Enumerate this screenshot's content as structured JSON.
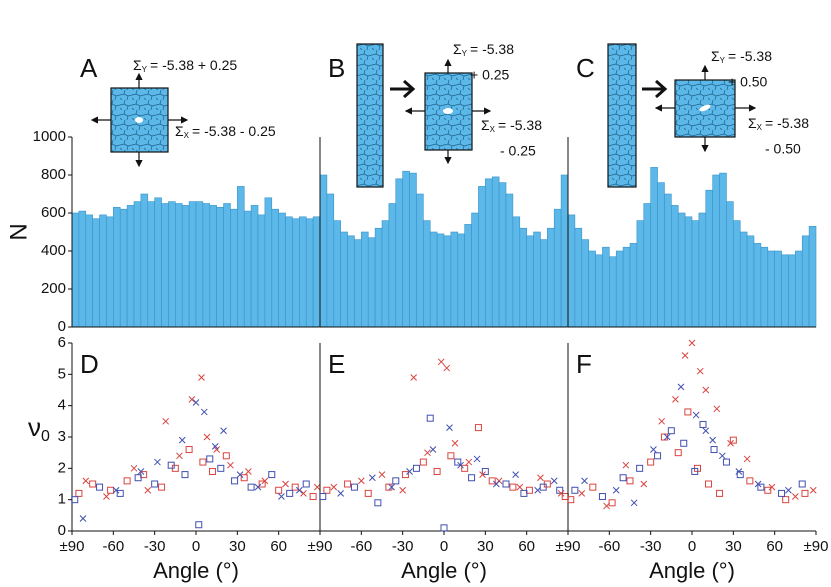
{
  "chart_data": [
    {
      "type": "histogram",
      "panel": "A",
      "color": "#5bb8e8",
      "xlim": [
        -90,
        90
      ],
      "ylim": [
        0,
        1000
      ],
      "yticks": [
        0,
        200,
        400,
        600,
        800,
        1000
      ],
      "ylabel": "N",
      "bins": [
        -90,
        -85,
        -80,
        -75,
        -70,
        -65,
        -60,
        -55,
        -50,
        -45,
        -40,
        -35,
        -30,
        -25,
        -20,
        -15,
        -10,
        -5,
        0,
        5,
        10,
        15,
        20,
        25,
        30,
        35,
        40,
        45,
        50,
        55,
        60,
        65,
        70,
        75,
        80,
        85,
        90
      ],
      "values": [
        600,
        610,
        590,
        570,
        590,
        580,
        630,
        620,
        640,
        660,
        700,
        660,
        680,
        650,
        660,
        650,
        640,
        660,
        660,
        650,
        640,
        630,
        650,
        620,
        740,
        610,
        640,
        590,
        680,
        620,
        600,
        580,
        570,
        580,
        570,
        580
      ],
      "annotations": [
        {
          "symbol": "Σ",
          "sub": "Y",
          "lines": [
            "= -5.38 + 0.25"
          ]
        },
        {
          "symbol": "Σ",
          "sub": "X",
          "lines": [
            "= -5.38 - 0.25"
          ]
        }
      ]
    },
    {
      "type": "histogram",
      "panel": "B",
      "color": "#5bb8e8",
      "xlim": [
        -90,
        90
      ],
      "ylim": [
        0,
        1000
      ],
      "bins": [
        -90,
        -85,
        -80,
        -75,
        -70,
        -65,
        -60,
        -55,
        -50,
        -45,
        -40,
        -35,
        -30,
        -25,
        -20,
        -15,
        -10,
        -5,
        0,
        5,
        10,
        15,
        20,
        25,
        30,
        35,
        40,
        45,
        50,
        55,
        60,
        65,
        70,
        75,
        80,
        85,
        90
      ],
      "values": [
        800,
        700,
        560,
        500,
        480,
        460,
        500,
        470,
        520,
        560,
        650,
        780,
        820,
        810,
        700,
        560,
        500,
        490,
        480,
        500,
        490,
        540,
        600,
        740,
        780,
        790,
        760,
        700,
        580,
        520,
        480,
        500,
        460,
        520,
        620,
        800
      ],
      "annotations": [
        {
          "symbol": "Σ",
          "sub": "Y",
          "lines": [
            "= -5.38",
            "+ 0.25"
          ]
        },
        {
          "symbol": "Σ",
          "sub": "X",
          "lines": [
            "= -5.38",
            "- 0.25"
          ]
        }
      ]
    },
    {
      "type": "histogram",
      "panel": "C",
      "color": "#5bb8e8",
      "xlim": [
        -90,
        90
      ],
      "ylim": [
        0,
        1000
      ],
      "bins": [
        -90,
        -85,
        -80,
        -75,
        -70,
        -65,
        -60,
        -55,
        -50,
        -45,
        -40,
        -35,
        -30,
        -25,
        -20,
        -15,
        -10,
        -5,
        0,
        5,
        10,
        15,
        20,
        25,
        30,
        35,
        40,
        45,
        50,
        55,
        60,
        65,
        70,
        75,
        80,
        85,
        90
      ],
      "values": [
        590,
        520,
        460,
        400,
        380,
        420,
        370,
        400,
        420,
        440,
        560,
        650,
        840,
        760,
        700,
        640,
        600,
        580,
        560,
        600,
        720,
        800,
        810,
        660,
        560,
        500,
        480,
        440,
        420,
        400,
        400,
        380,
        380,
        400,
        480,
        530
      ],
      "annotations": [
        {
          "symbol": "Σ",
          "sub": "Y",
          "lines": [
            "= -5.38",
            "+ 0.50"
          ]
        },
        {
          "symbol": "Σ",
          "sub": "X",
          "lines": [
            "= -5.38",
            "- 0.50"
          ]
        }
      ]
    },
    {
      "type": "scatter",
      "panel": "D",
      "xlim": [
        -90,
        90
      ],
      "ylim": [
        0,
        6
      ],
      "yticks": [
        0,
        1,
        2,
        3,
        4,
        5,
        6
      ],
      "ylabel": {
        "symbol": "ν",
        "sub": "0"
      },
      "xlabel": "Angle (°)",
      "xticks": [
        {
          "value": -90,
          "label": "±90"
        },
        -60,
        -30,
        0,
        30,
        60,
        {
          "value": 90,
          "label": "±90"
        }
      ],
      "series": [
        {
          "marker": "square",
          "color": "#d9443f",
          "x": [
            -85,
            -75,
            -62,
            -50,
            -38,
            -25,
            -15,
            -5,
            5,
            12,
            22,
            35,
            48,
            60,
            72,
            85
          ],
          "values": [
            1.2,
            1.5,
            1.3,
            1.6,
            1.8,
            1.4,
            2.0,
            2.6,
            2.2,
            1.9,
            2.4,
            1.7,
            1.5,
            1.3,
            1.4,
            1.1
          ]
        },
        {
          "marker": "square",
          "color": "#4050b0",
          "x": [
            -88,
            -70,
            -55,
            -42,
            -30,
            -18,
            -8,
            2,
            10,
            18,
            28,
            40,
            55,
            68,
            80
          ],
          "values": [
            1.0,
            1.4,
            1.2,
            1.7,
            1.5,
            2.1,
            1.8,
            0.2,
            2.3,
            2.0,
            1.6,
            1.4,
            1.8,
            1.2,
            1.5
          ]
        },
        {
          "marker": "cross",
          "color": "#d9443f",
          "x": [
            -80,
            -65,
            -45,
            -35,
            -22,
            -12,
            -3,
            4,
            8,
            15,
            25,
            38,
            50,
            65,
            78,
            88
          ],
          "values": [
            1.6,
            1.1,
            2.0,
            1.3,
            3.5,
            2.4,
            4.2,
            4.9,
            3.0,
            2.6,
            2.1,
            1.9,
            1.6,
            1.5,
            1.2,
            1.4
          ]
        },
        {
          "marker": "cross",
          "color": "#4050b0",
          "x": [
            -82,
            -58,
            -40,
            -28,
            -10,
            0,
            6,
            14,
            20,
            32,
            45,
            62,
            75
          ],
          "values": [
            0.4,
            1.3,
            1.9,
            2.2,
            2.9,
            4.1,
            3.8,
            2.7,
            3.2,
            1.8,
            1.4,
            1.1,
            1.3
          ]
        }
      ]
    },
    {
      "type": "scatter",
      "panel": "E",
      "xlim": [
        -90,
        90
      ],
      "ylim": [
        0,
        6
      ],
      "xlabel": "Angle (°)",
      "xticks": [
        -60,
        -30,
        0,
        30,
        60,
        {
          "value": 90,
          "label": "±90"
        }
      ],
      "series": [
        {
          "marker": "square",
          "color": "#d9443f",
          "x": [
            -85,
            -70,
            -55,
            -40,
            -28,
            -15,
            -5,
            5,
            15,
            25,
            35,
            50,
            62,
            75,
            88
          ],
          "values": [
            1.3,
            1.5,
            1.2,
            1.4,
            1.8,
            2.2,
            1.9,
            2.4,
            2.0,
            3.3,
            1.6,
            1.4,
            1.3,
            1.5,
            1.1
          ]
        },
        {
          "marker": "square",
          "color": "#4050b0",
          "x": [
            -88,
            -65,
            -48,
            -35,
            -20,
            -10,
            0,
            10,
            20,
            30,
            45,
            58,
            72,
            84
          ],
          "values": [
            1.1,
            1.4,
            0.9,
            1.6,
            2.0,
            3.6,
            0.1,
            2.2,
            1.7,
            1.9,
            1.5,
            1.2,
            1.4,
            1.3
          ]
        },
        {
          "marker": "cross",
          "color": "#d9443f",
          "x": [
            -80,
            -60,
            -45,
            -30,
            -22,
            -12,
            -2,
            2,
            8,
            18,
            28,
            40,
            55,
            70,
            85
          ],
          "values": [
            1.4,
            1.6,
            1.8,
            1.3,
            4.9,
            2.5,
            5.4,
            5.2,
            2.8,
            2.2,
            1.8,
            1.6,
            1.4,
            1.7,
            1.2
          ]
        },
        {
          "marker": "cross",
          "color": "#4050b0",
          "x": [
            -75,
            -52,
            -38,
            -25,
            -8,
            4,
            12,
            24,
            38,
            52,
            68,
            80
          ],
          "values": [
            1.2,
            1.7,
            1.4,
            1.9,
            2.6,
            3.3,
            2.1,
            2.3,
            1.5,
            1.8,
            1.3,
            1.6
          ]
        }
      ]
    },
    {
      "type": "scatter",
      "panel": "F",
      "xlim": [
        -90,
        90
      ],
      "ylim": [
        0,
        6
      ],
      "xlabel": "Angle (°)",
      "xticks": [
        -60,
        -30,
        0,
        30,
        60,
        {
          "value": 90,
          "label": "±90"
        }
      ],
      "series": [
        {
          "marker": "square",
          "color": "#d9443f",
          "x": [
            -88,
            -72,
            -58,
            -45,
            -30,
            -20,
            -10,
            -3,
            4,
            12,
            20,
            30,
            42,
            55,
            68,
            82
          ],
          "values": [
            1.0,
            1.4,
            0.9,
            1.6,
            2.2,
            3.0,
            2.5,
            3.8,
            2.0,
            1.5,
            1.2,
            2.9,
            1.6,
            1.3,
            1.0,
            1.2
          ]
        },
        {
          "marker": "square",
          "color": "#4050b0",
          "x": [
            -85,
            -65,
            -50,
            -38,
            -25,
            -15,
            -6,
            2,
            8,
            16,
            25,
            35,
            50,
            65,
            80
          ],
          "values": [
            1.3,
            1.1,
            1.7,
            2.0,
            2.4,
            3.2,
            2.8,
            1.9,
            3.4,
            2.6,
            2.2,
            1.8,
            1.4,
            1.2,
            1.5
          ]
        },
        {
          "marker": "cross",
          "color": "#d9443f",
          "x": [
            -80,
            -62,
            -48,
            -35,
            -22,
            -12,
            -5,
            0,
            6,
            10,
            18,
            28,
            40,
            58,
            75,
            88
          ],
          "values": [
            1.2,
            0.8,
            2.1,
            1.5,
            3.5,
            4.2,
            5.6,
            6.0,
            5.1,
            4.5,
            3.9,
            2.8,
            2.3,
            1.4,
            1.1,
            1.3
          ]
        },
        {
          "marker": "cross",
          "color": "#4050b0",
          "x": [
            -78,
            -55,
            -42,
            -28,
            -18,
            -8,
            3,
            10,
            15,
            22,
            34,
            48,
            70
          ],
          "values": [
            1.6,
            1.3,
            0.9,
            2.6,
            3.0,
            4.6,
            3.7,
            3.2,
            2.9,
            2.4,
            1.9,
            1.5,
            1.3
          ]
        }
      ]
    }
  ]
}
